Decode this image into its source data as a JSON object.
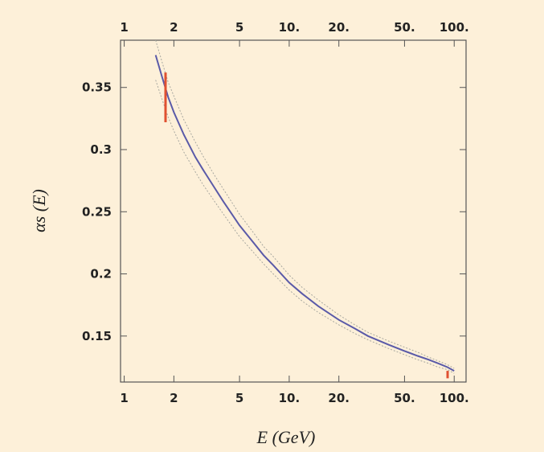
{
  "chart_data": {
    "type": "line",
    "title": "",
    "xlabel": "E (GeV)",
    "ylabel": "αs (E)",
    "x_scale": "log",
    "xlim": [
      0.95,
      118
    ],
    "ylim": [
      0.113,
      0.388
    ],
    "x_ticks": [
      1,
      2,
      5,
      10,
      20,
      50,
      100
    ],
    "x_tick_labels": [
      "1",
      "2",
      "5",
      "10.",
      "20.",
      "50.",
      "100."
    ],
    "y_ticks": [
      0.15,
      0.2,
      0.25,
      0.3,
      0.35
    ],
    "y_tick_labels": [
      "0.15",
      "0.2",
      "0.25",
      "0.3",
      "0.35"
    ],
    "grid": false,
    "series": [
      {
        "role": "central",
        "color": "#5a5aa8",
        "x": [
          1.55,
          1.7,
          1.85,
          2,
          2.3,
          2.7,
          3,
          3.5,
          4,
          5,
          6,
          7,
          8,
          10,
          12,
          15,
          20,
          25,
          30,
          40,
          50,
          60,
          70,
          80,
          91,
          100
        ],
        "y": [
          0.376,
          0.358,
          0.342,
          0.33,
          0.312,
          0.294,
          0.284,
          0.27,
          0.258,
          0.239,
          0.226,
          0.215,
          0.207,
          0.193,
          0.184,
          0.174,
          0.163,
          0.156,
          0.15,
          0.143,
          0.138,
          0.134,
          0.131,
          0.128,
          0.125,
          0.122
        ]
      },
      {
        "role": "upper-band",
        "color": "#a8a8a0",
        "x": [
          1.55,
          1.7,
          1.85,
          2,
          2.3,
          2.7,
          3,
          3.5,
          4,
          5,
          6,
          7,
          8,
          10,
          12,
          15,
          20,
          25,
          30,
          40,
          50,
          60,
          70,
          80,
          91,
          100
        ],
        "y": [
          0.388,
          0.37,
          0.354,
          0.343,
          0.324,
          0.306,
          0.295,
          0.28,
          0.268,
          0.248,
          0.234,
          0.222,
          0.214,
          0.199,
          0.189,
          0.179,
          0.167,
          0.159,
          0.153,
          0.146,
          0.141,
          0.137,
          0.133,
          0.13,
          0.127,
          0.124
        ]
      },
      {
        "role": "lower-band",
        "color": "#a8a8a0",
        "x": [
          1.55,
          1.7,
          1.85,
          2,
          2.3,
          2.7,
          3,
          3.5,
          4,
          5,
          6,
          7,
          8,
          10,
          12,
          15,
          20,
          25,
          30,
          40,
          50,
          60,
          70,
          80,
          91,
          100
        ],
        "y": [
          0.356,
          0.34,
          0.326,
          0.315,
          0.298,
          0.282,
          0.272,
          0.259,
          0.248,
          0.23,
          0.218,
          0.208,
          0.2,
          0.187,
          0.178,
          0.169,
          0.159,
          0.152,
          0.147,
          0.14,
          0.135,
          0.131,
          0.128,
          0.125,
          0.123,
          0.12
        ]
      }
    ],
    "error_bars": [
      {
        "x": 1.78,
        "y": 0.342,
        "ylow": 0.322,
        "yhigh": 0.362,
        "color": "#e05030"
      },
      {
        "x": 91.2,
        "y": 0.119,
        "ylow": 0.116,
        "yhigh": 0.122,
        "color": "#e05030"
      }
    ],
    "colors": {
      "background": "#fdf0d9",
      "frame": "#555555"
    }
  }
}
